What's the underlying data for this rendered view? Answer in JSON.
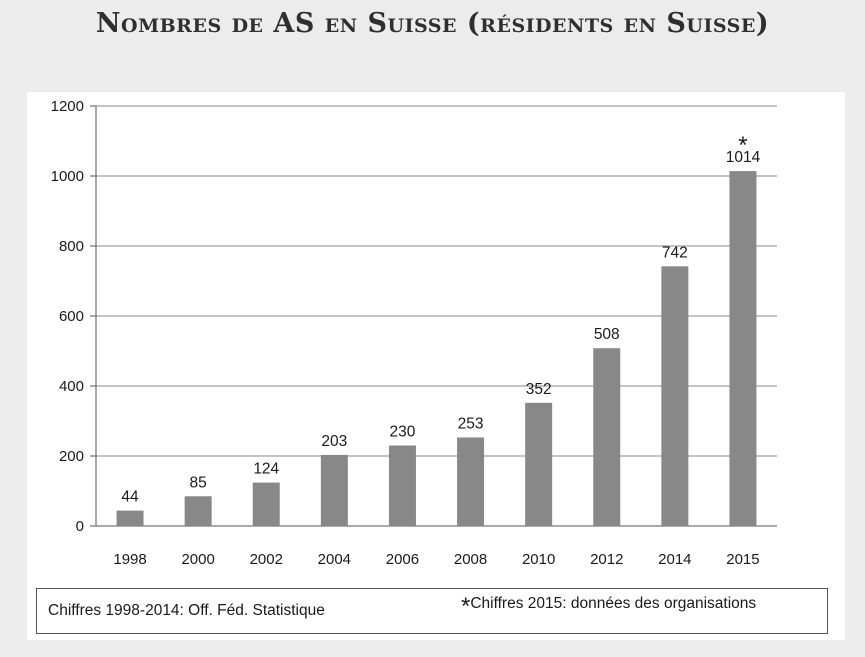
{
  "page_title": "Nombres de AS en Suisse (résidents en Suisse)",
  "chart_data": {
    "type": "bar",
    "title": "Nombres de AS en Suisse (résidents en Suisse)",
    "xlabel": "",
    "ylabel": "",
    "categories": [
      "1998",
      "2000",
      "2002",
      "2004",
      "2006",
      "2008",
      "2010",
      "2012",
      "2014",
      "2015"
    ],
    "values": [
      44,
      85,
      124,
      203,
      230,
      253,
      352,
      508,
      742,
      1014
    ],
    "ylim": [
      0,
      1200
    ],
    "yticks": [
      "0",
      "200",
      "400",
      "600",
      "800",
      "1000",
      "1200"
    ],
    "grid": true,
    "bar_color": "#888888",
    "annotated_category": "2015",
    "annotation_marker": "*"
  },
  "footer": {
    "note_left": "Chiffres 1998-2014: Off. Féd. Statistique",
    "note_right_marker": "*",
    "note_right": "Chiffres 2015: données des organisations"
  }
}
